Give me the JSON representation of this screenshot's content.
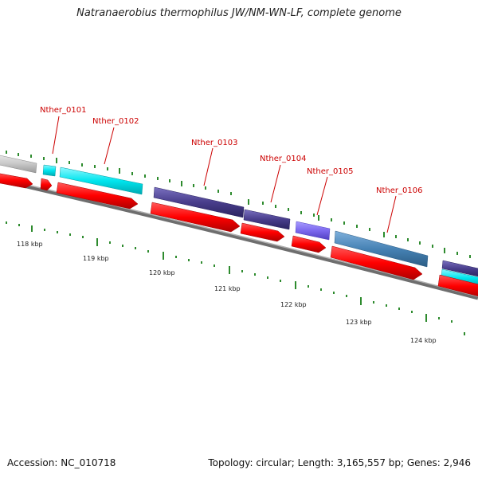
{
  "title": "Natranaerobius thermophilus JW/NM-WN-LF, complete genome",
  "footer": {
    "accession": "Accession: NC_010718",
    "summary": "Topology: circular; Length: 3,165,557 bp; Genes: 2,946"
  },
  "scale_labels": [
    "118 kbp",
    "119 kbp",
    "120 kbp",
    "121 kbp",
    "122 kbp",
    "123 kbp",
    "124 kbp"
  ],
  "gene_labels": [
    "Nther_0101",
    "Nther_0102",
    "Nther_0103",
    "Nther_0104",
    "Nther_0105",
    "Nther_0106"
  ],
  "colors": {
    "label": "#cc0000",
    "arrow": "#ff0000",
    "tick": "#2e8b2e",
    "backbone": "#808080",
    "gene_gray": "#c8c8c8",
    "gene_cyan": "#00e5ee",
    "gene_navy": "#483d8b",
    "gene_slate": "#7b68ee",
    "gene_steel": "#4682b4"
  }
}
